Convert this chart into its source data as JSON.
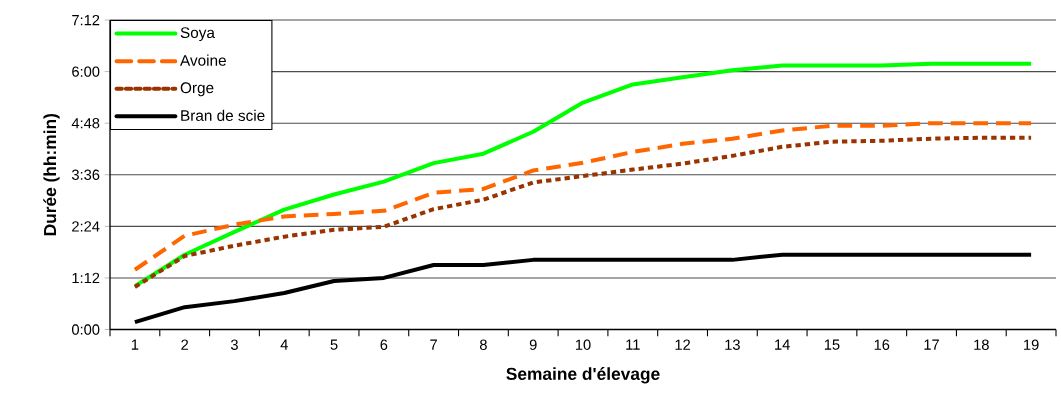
{
  "chart_data": {
    "type": "line",
    "xlabel": "Semaine d'élevage",
    "ylabel": "Durée (hh:min)",
    "categories": [
      "1",
      "2",
      "3",
      "4",
      "5",
      "6",
      "7",
      "8",
      "9",
      "10",
      "11",
      "12",
      "13",
      "14",
      "15",
      "16",
      "17",
      "18",
      "19"
    ],
    "ylim": [
      0,
      7.2
    ],
    "yticks": [
      {
        "value": 0,
        "label": "0:00"
      },
      {
        "value": 1.2,
        "label": "1:12"
      },
      {
        "value": 2.4,
        "label": "2:24"
      },
      {
        "value": 3.6,
        "label": "3:36"
      },
      {
        "value": 4.8,
        "label": "4:48"
      },
      {
        "value": 6.0,
        "label": "6:00"
      },
      {
        "value": 7.2,
        "label": "7:12"
      }
    ],
    "grid": "y",
    "legend": "top left",
    "marker": "none",
    "series": [
      {
        "name": "Soya",
        "color": "#00ff00",
        "line_style": "solid",
        "values": [
          1.01,
          1.74,
          2.27,
          2.79,
          3.14,
          3.44,
          3.87,
          4.09,
          4.6,
          5.28,
          5.7,
          5.87,
          6.03,
          6.14,
          6.14,
          6.14,
          6.18,
          6.18,
          6.18
        ]
      },
      {
        "name": "Avoine",
        "color": "#ff6600",
        "line_style": "dashed",
        "values": [
          1.39,
          2.18,
          2.44,
          2.63,
          2.69,
          2.76,
          3.18,
          3.27,
          3.7,
          3.88,
          4.13,
          4.32,
          4.44,
          4.63,
          4.74,
          4.74,
          4.8,
          4.8,
          4.8
        ]
      },
      {
        "name": "Orge",
        "color": "#993300",
        "line_style": "dotted",
        "values": [
          0.99,
          1.71,
          1.95,
          2.16,
          2.32,
          2.39,
          2.8,
          3.02,
          3.42,
          3.57,
          3.72,
          3.86,
          4.04,
          4.25,
          4.37,
          4.39,
          4.44,
          4.46,
          4.46
        ]
      },
      {
        "name": "Bran de scie",
        "color": "#000000",
        "line_style": "solid",
        "values": [
          0.17,
          0.52,
          0.66,
          0.85,
          1.13,
          1.2,
          1.5,
          1.5,
          1.62,
          1.62,
          1.62,
          1.62,
          1.62,
          1.74,
          1.74,
          1.74,
          1.74,
          1.74,
          1.74
        ]
      }
    ]
  }
}
